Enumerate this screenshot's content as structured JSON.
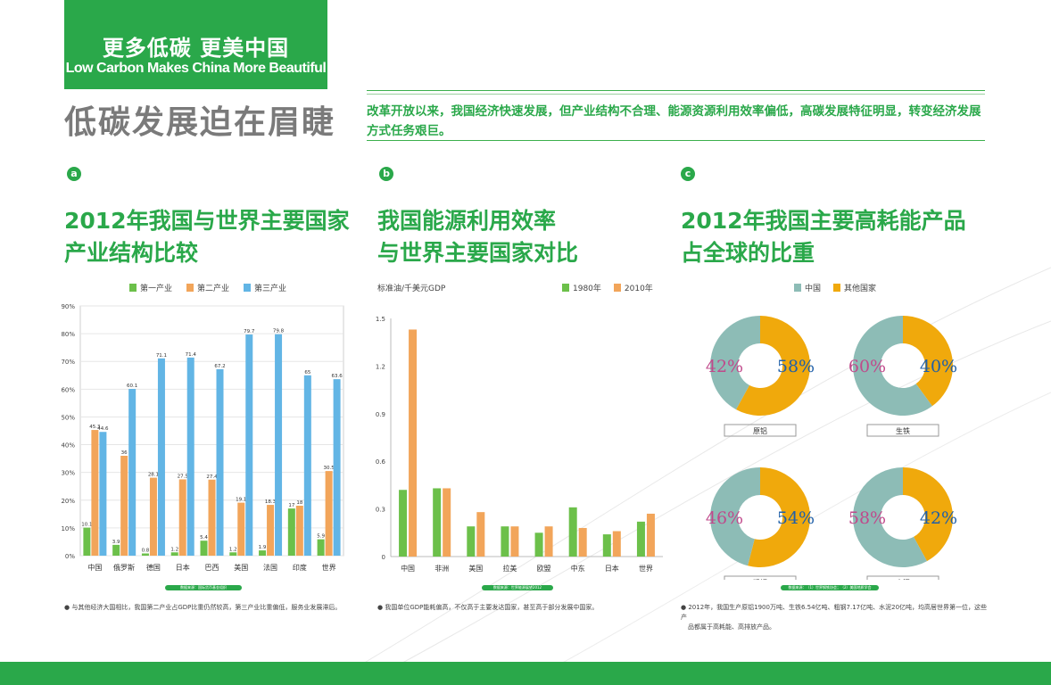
{
  "header": {
    "title_cn": "更多低碳 更美中国",
    "title_en": "Low Carbon Makes China More Beautiful",
    "subheading": "低碳发展迫在眉睫",
    "intro": "改革开放以来，我国经济快速发展，但产业结构不合理、能源资源利用效率偏低，高碳发展特征明显，转变经济发展方式任务艰巨。"
  },
  "sections": {
    "a": {
      "badge": "a",
      "title_line1": "2012年我国与世界主要国家",
      "title_line2": "产业结构比较",
      "source": "数据来源：国际货币基金组织",
      "note": "● 与其他经济大国相比，我国第二产业占GDP比重仍然较高，第三产业比重偏低，服务业发展滞后。"
    },
    "b": {
      "badge": "b",
      "title_line1": "我国能源利用效率",
      "title_line2": "与世界主要国家对比",
      "source": "数据来源：世界能源展望2012",
      "note": "● 我国单位GDP能耗偏高，不仅高于主要发达国家，甚至高于部分发展中国家。"
    },
    "c": {
      "badge": "c",
      "title_line1": "2012年我国主要高耗能产品",
      "title_line2": "占全球的比重",
      "source": "数据来源：（1）世界钢铁协会；（2）美国地质学会",
      "note_line1": "● 2012年，我国生产原铝1900万吨、生铁6.54亿吨、粗钢7.17亿吨、水泥20亿吨，均高居世界第一位，这些产",
      "note_line2": "品都属于高耗能、高排放产品。"
    }
  },
  "colors": {
    "green": "#2aa84a",
    "bar1": "#6cc04a",
    "bar2": "#f2a55a",
    "bar3": "#62b5e5",
    "china": "#8dbcb6",
    "other": "#f0a90c",
    "pct_china": "#c0498b",
    "pct_other": "#1f5fa8"
  },
  "chart_data": [
    {
      "type": "bar",
      "title": "2012年我国与世界主要国家产业结构比较",
      "categories": [
        "中国",
        "俄罗斯",
        "德国",
        "日本",
        "巴西",
        "美国",
        "法国",
        "印度",
        "世界"
      ],
      "series": [
        {
          "name": "第一产业",
          "values": [
            10.1,
            3.9,
            0.8,
            1.2,
            5.4,
            1.2,
            1.9,
            17,
            5.9
          ],
          "labels": [
            "10.1",
            "3.9",
            "0.8",
            "1.2",
            "5.4",
            "1.2",
            "1.9",
            "17",
            "5.9"
          ]
        },
        {
          "name": "第二产业",
          "values": [
            45.3,
            36,
            28.1,
            27.5,
            27.4,
            19.1,
            18.3,
            18,
            30.5
          ],
          "labels": [
            "45.3",
            "36",
            "28.1",
            "27.5",
            "27.4",
            "19.1",
            "18.3",
            "18",
            "30.5"
          ]
        },
        {
          "name": "第三产业",
          "values": [
            44.6,
            60.1,
            71.1,
            71.4,
            67.2,
            79.7,
            79.8,
            65,
            63.6
          ],
          "labels": [
            "44.6",
            "60.1",
            "71.1",
            "71.4",
            "67.2",
            "79.7",
            "79.8",
            "65",
            "63.6"
          ]
        }
      ],
      "ylim": [
        0,
        90
      ],
      "yticks": [
        "0%",
        "10%",
        "20%",
        "30%",
        "40%",
        "50%",
        "60%",
        "70%",
        "80%",
        "90%"
      ]
    },
    {
      "type": "bar",
      "title": "我国能源利用效率与世界主要国家对比",
      "ylabel": "标准油/千美元GDP",
      "categories": [
        "中国",
        "非洲",
        "美国",
        "拉美",
        "欧盟",
        "中东",
        "日本",
        "世界"
      ],
      "series": [
        {
          "name": "1980年",
          "values": [
            0.42,
            0.43,
            0.19,
            0.19,
            0.15,
            0.31,
            0.14,
            0.22
          ]
        },
        {
          "name": "2010年",
          "values": [
            1.43,
            0.43,
            0.28,
            0.19,
            0.19,
            0.18,
            0.16,
            0.27
          ]
        }
      ],
      "ylim": [
        0,
        1.5
      ],
      "yticks": [
        "0",
        "0.3",
        "0.6",
        "0.9",
        "1.2",
        "1.5"
      ]
    },
    {
      "type": "pie",
      "title": "2012年我国主要高耗能产品占全球的比重",
      "legend": [
        "中国",
        "其他国家"
      ],
      "charts": [
        {
          "name": "原铝",
          "china": 42,
          "other": 58,
          "china_label": "42%",
          "other_label": "58%"
        },
        {
          "name": "生铁",
          "china": 60,
          "other": 40,
          "china_label": "60%",
          "other_label": "40%"
        },
        {
          "name": "粗钢",
          "china": 46,
          "other": 54,
          "china_label": "46%",
          "other_label": "54%"
        },
        {
          "name": "水泥",
          "china": 58,
          "other": 42,
          "china_label": "58%",
          "other_label": "42%"
        }
      ]
    }
  ]
}
